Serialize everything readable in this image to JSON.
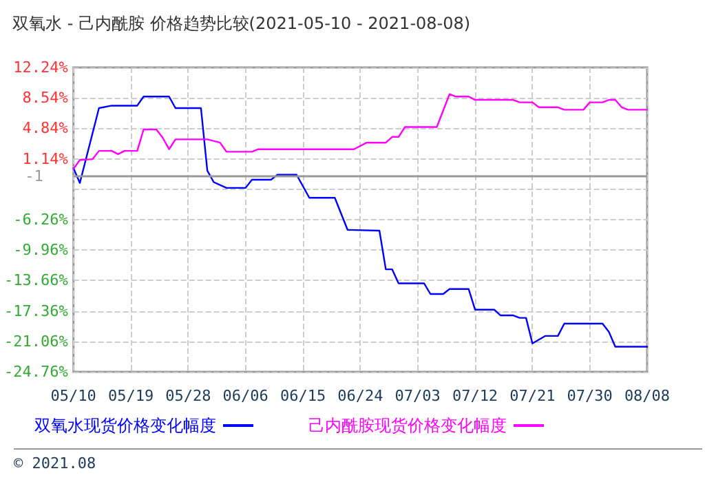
{
  "chart_data": {
    "type": "line",
    "title": "双氧水 - 己内酰胺 价格趋势比较(2021-05-10 - 2021-08-08)",
    "xlim": [
      "--05-10",
      "--08-08"
    ],
    "xticks": [
      {
        "value": "--05-10",
        "label": "05/10"
      },
      {
        "value": "--05-19",
        "label": "05/19"
      },
      {
        "value": "--05-28",
        "label": "05/28"
      },
      {
        "value": "--06-06",
        "label": "06/06"
      },
      {
        "value": "--06-15",
        "label": "06/15"
      },
      {
        "value": "--06-24",
        "label": "06/24"
      },
      {
        "value": "--07-03",
        "label": "07/03"
      },
      {
        "value": "--07-12",
        "label": "07/12"
      },
      {
        "value": "--07-21",
        "label": "07/21"
      },
      {
        "value": "--07-30",
        "label": "07/30"
      },
      {
        "value": "--08-08",
        "label": "08/08"
      }
    ],
    "ylim": [
      -24.76,
      12.24
    ],
    "yticks": [
      {
        "value": -24.76,
        "label": "-24.76%"
      },
      {
        "value": -21.06,
        "label": "-21.06%"
      },
      {
        "value": -17.36,
        "label": "-17.36%"
      },
      {
        "value": -13.66,
        "label": "-13.66%"
      },
      {
        "value": -9.96,
        "label": "-9.96%"
      },
      {
        "value": -6.26,
        "label": "-6.26%"
      },
      {
        "value": -2.56,
        "label": null
      },
      {
        "value": 1.14,
        "label": "1.14%"
      },
      {
        "value": 4.84,
        "label": "4.84%"
      },
      {
        "value": 8.54,
        "label": "8.54%"
      },
      {
        "value": 12.24,
        "label": "12.24%"
      }
    ],
    "grid": true,
    "legend": "bottom",
    "marker": "none",
    "line_style": "solid",
    "ref_lines": [
      {
        "axis": "y",
        "value": -1,
        "label": "-1",
        "color": "#999999"
      }
    ],
    "annotations": [
      "© 2021.08"
    ],
    "series": [
      {
        "name": "双氧水现货价格变化幅度",
        "color": "#0000ff",
        "x": [
          "--05-10",
          "--05-11",
          "--05-14",
          "--05-16",
          "--05-20",
          "--05-21",
          "--05-25",
          "--05-26",
          "--05-30",
          "--05-31",
          "--06-01",
          "--06-03",
          "--06-06",
          "--06-07",
          "--06-10",
          "--06-11",
          "--06-14",
          "--06-16",
          "--06-20",
          "--06-22",
          "--06-27",
          "--06-28",
          "--06-29",
          "--06-30",
          "--07-04",
          "--07-05",
          "--07-07",
          "--07-08",
          "--07-11",
          "--07-12",
          "--07-15",
          "--07-16",
          "--07-18",
          "--07-19",
          "--07-20",
          "--07-21",
          "--07-23",
          "--07-25",
          "--07-26",
          "--08-01",
          "--08-02",
          "--08-03",
          "--08-08"
        ],
        "values": [
          0.0,
          -1.8,
          7.3,
          7.6,
          7.6,
          8.7,
          8.7,
          7.3,
          7.3,
          -0.3,
          -1.7,
          -2.4,
          -2.4,
          -1.4,
          -1.4,
          -0.8,
          -0.8,
          -3.6,
          -3.6,
          -7.5,
          -7.6,
          -12.3,
          -12.3,
          -14.0,
          -14.0,
          -15.3,
          -15.3,
          -14.7,
          -14.7,
          -17.2,
          -17.2,
          -17.9,
          -17.9,
          -18.2,
          -18.2,
          -21.3,
          -20.4,
          -20.4,
          -18.9,
          -18.9,
          -19.9,
          -21.7,
          -21.7
        ]
      },
      {
        "name": "己内酰胺现货价格变化幅度",
        "color": "#ff00ff",
        "x": [
          "--05-10",
          "--05-11",
          "--05-13",
          "--05-14",
          "--05-16",
          "--05-17",
          "--05-18",
          "--05-20",
          "--05-21",
          "--05-23",
          "--05-24",
          "--05-25",
          "--05-26",
          "--05-31",
          "--06-02",
          "--06-03",
          "--06-07",
          "--06-08",
          "--06-23",
          "--06-25",
          "--06-28",
          "--06-29",
          "--06-30",
          "--07-01",
          "--07-06",
          "--07-08",
          "--07-09",
          "--07-11",
          "--07-12",
          "--07-18",
          "--07-19",
          "--07-21",
          "--07-22",
          "--07-25",
          "--07-26",
          "--07-29",
          "--07-30",
          "--08-01",
          "--08-02",
          "--08-03",
          "--08-04",
          "--08-05",
          "--08-08"
        ],
        "values": [
          -0.1,
          1.0,
          1.1,
          2.1,
          2.1,
          1.7,
          2.1,
          2.1,
          4.7,
          4.7,
          3.7,
          2.3,
          3.5,
          3.5,
          3.1,
          2.0,
          2.0,
          2.3,
          2.3,
          3.1,
          3.1,
          3.8,
          3.8,
          5.0,
          5.0,
          9.0,
          8.7,
          8.7,
          8.3,
          8.3,
          8.0,
          8.0,
          7.4,
          7.4,
          7.1,
          7.1,
          8.0,
          8.0,
          8.3,
          8.3,
          7.4,
          7.1,
          7.1
        ]
      }
    ]
  }
}
